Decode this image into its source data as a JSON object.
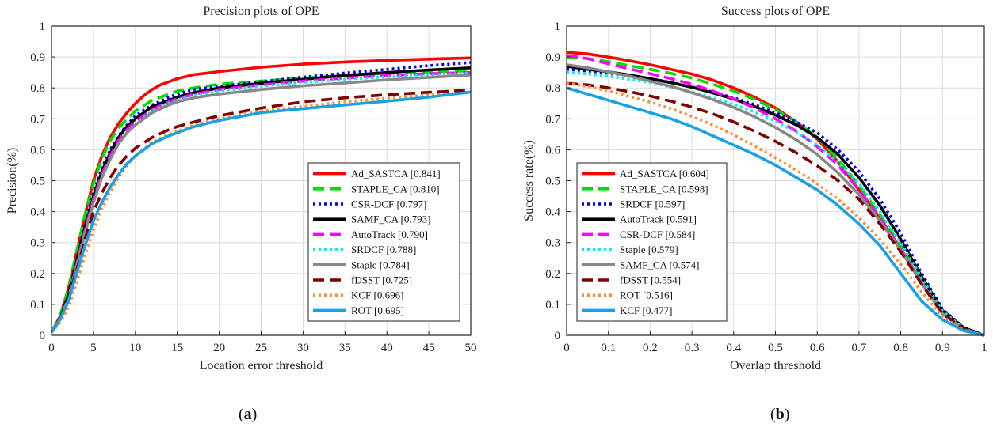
{
  "chart_data": [
    {
      "type": "line",
      "title": "Precision plots of OPE",
      "xlabel": "Location error threshold",
      "ylabel": "Precision(%)",
      "xlim": [
        0,
        50
      ],
      "ylim": [
        0,
        1
      ],
      "xticks": [
        "0",
        "5",
        "10",
        "15",
        "20",
        "25",
        "30",
        "35",
        "40",
        "45",
        "50"
      ],
      "yticks": [
        "0",
        "0.1",
        "0.2",
        "0.3",
        "0.4",
        "0.5",
        "0.6",
        "0.7",
        "0.8",
        "0.9",
        "1"
      ],
      "grid": true,
      "legend_position": "bottom-right",
      "panel_label": "a",
      "series": [
        {
          "name": "Ad_SASTCA [0.841]",
          "color": "#ff0000",
          "dash": "solid",
          "x": [
            0,
            1,
            2,
            3,
            4,
            5,
            6,
            7,
            8,
            9,
            10,
            11,
            12,
            13,
            14,
            15,
            17,
            20,
            25,
            30,
            35,
            40,
            45,
            50
          ],
          "y": [
            0.01,
            0.06,
            0.15,
            0.27,
            0.39,
            0.5,
            0.58,
            0.64,
            0.685,
            0.72,
            0.75,
            0.775,
            0.795,
            0.81,
            0.82,
            0.83,
            0.843,
            0.853,
            0.867,
            0.877,
            0.884,
            0.889,
            0.893,
            0.897
          ]
        },
        {
          "name": "STAPLE_CA [0.810]",
          "color": "#00dd00",
          "dash": "dash",
          "x": [
            0,
            1,
            2,
            3,
            4,
            5,
            6,
            7,
            8,
            9,
            10,
            12,
            14,
            15,
            17,
            20,
            25,
            30,
            35,
            40,
            45,
            50
          ],
          "y": [
            0.01,
            0.06,
            0.15,
            0.27,
            0.39,
            0.49,
            0.57,
            0.63,
            0.67,
            0.7,
            0.725,
            0.76,
            0.78,
            0.79,
            0.8,
            0.812,
            0.822,
            0.832,
            0.84,
            0.847,
            0.852,
            0.855
          ]
        },
        {
          "name": "CSR-DCF [0.797]",
          "color": "#0000ee",
          "dash": "dot",
          "x": [
            0,
            1,
            2,
            3,
            4,
            5,
            6,
            7,
            8,
            9,
            10,
            12,
            14,
            15,
            17,
            20,
            25,
            30,
            35,
            40,
            45,
            50
          ],
          "y": [
            0.01,
            0.05,
            0.13,
            0.24,
            0.36,
            0.46,
            0.54,
            0.6,
            0.645,
            0.68,
            0.71,
            0.745,
            0.77,
            0.78,
            0.795,
            0.805,
            0.82,
            0.835,
            0.848,
            0.86,
            0.872,
            0.882
          ]
        },
        {
          "name": "SAMF_CA [0.793]",
          "color": "#000000",
          "dash": "solid",
          "x": [
            0,
            1,
            2,
            3,
            4,
            5,
            6,
            7,
            8,
            9,
            10,
            12,
            14,
            15,
            17,
            20,
            25,
            30,
            35,
            40,
            45,
            50
          ],
          "y": [
            0.01,
            0.05,
            0.13,
            0.24,
            0.35,
            0.45,
            0.53,
            0.59,
            0.64,
            0.675,
            0.7,
            0.74,
            0.76,
            0.77,
            0.785,
            0.8,
            0.815,
            0.828,
            0.84,
            0.85,
            0.858,
            0.865
          ]
        },
        {
          "name": "AutoTrack [0.790]",
          "color": "#ff00ff",
          "dash": "dash",
          "x": [
            0,
            1,
            2,
            3,
            4,
            5,
            6,
            7,
            8,
            9,
            10,
            12,
            14,
            15,
            17,
            20,
            25,
            30,
            35,
            40,
            45,
            50
          ],
          "y": [
            0.01,
            0.05,
            0.12,
            0.23,
            0.34,
            0.44,
            0.52,
            0.58,
            0.63,
            0.665,
            0.69,
            0.73,
            0.755,
            0.765,
            0.78,
            0.795,
            0.81,
            0.822,
            0.832,
            0.84,
            0.846,
            0.85
          ]
        },
        {
          "name": "SRDCF [0.788]",
          "color": "#00eeee",
          "dash": "dot",
          "x": [
            0,
            1,
            2,
            3,
            4,
            5,
            6,
            7,
            8,
            9,
            10,
            12,
            14,
            15,
            17,
            20,
            25,
            30,
            35,
            40,
            45,
            50
          ],
          "y": [
            0.01,
            0.05,
            0.12,
            0.22,
            0.33,
            0.43,
            0.51,
            0.57,
            0.62,
            0.655,
            0.685,
            0.725,
            0.75,
            0.762,
            0.775,
            0.79,
            0.805,
            0.818,
            0.828,
            0.836,
            0.842,
            0.848
          ]
        },
        {
          "name": "Staple [0.784]",
          "color": "#888888",
          "dash": "solid",
          "x": [
            0,
            1,
            2,
            3,
            4,
            5,
            6,
            7,
            8,
            9,
            10,
            12,
            14,
            15,
            17,
            20,
            25,
            30,
            35,
            40,
            45,
            50
          ],
          "y": [
            0.01,
            0.05,
            0.12,
            0.22,
            0.33,
            0.43,
            0.51,
            0.57,
            0.62,
            0.655,
            0.68,
            0.72,
            0.745,
            0.755,
            0.768,
            0.78,
            0.795,
            0.807,
            0.816,
            0.826,
            0.834,
            0.842
          ]
        },
        {
          "name": "fDSST [0.725]",
          "color": "#800000",
          "dash": "dash",
          "x": [
            0,
            1,
            2,
            3,
            4,
            5,
            6,
            7,
            8,
            9,
            10,
            12,
            14,
            15,
            17,
            20,
            25,
            30,
            35,
            40,
            45,
            50
          ],
          "y": [
            0.01,
            0.05,
            0.12,
            0.21,
            0.31,
            0.4,
            0.46,
            0.51,
            0.55,
            0.58,
            0.605,
            0.64,
            0.665,
            0.675,
            0.69,
            0.71,
            0.735,
            0.755,
            0.768,
            0.778,
            0.786,
            0.793
          ]
        },
        {
          "name": "KCF [0.696]",
          "color": "#ff8c33",
          "dash": "dot",
          "x": [
            0,
            1,
            2,
            3,
            4,
            5,
            6,
            7,
            8,
            9,
            10,
            12,
            14,
            15,
            17,
            20,
            25,
            30,
            35,
            40,
            45,
            50
          ],
          "y": [
            0.01,
            0.04,
            0.09,
            0.17,
            0.26,
            0.34,
            0.41,
            0.465,
            0.51,
            0.55,
            0.58,
            0.625,
            0.65,
            0.66,
            0.68,
            0.7,
            0.725,
            0.74,
            0.755,
            0.767,
            0.777,
            0.785
          ]
        },
        {
          "name": "ROT [0.695]",
          "color": "#1aa0e6",
          "dash": "solid",
          "x": [
            0,
            1,
            2,
            3,
            4,
            5,
            6,
            7,
            8,
            9,
            10,
            12,
            14,
            15,
            17,
            20,
            25,
            30,
            35,
            40,
            45,
            50
          ],
          "y": [
            0.01,
            0.05,
            0.11,
            0.2,
            0.29,
            0.37,
            0.43,
            0.48,
            0.52,
            0.555,
            0.58,
            0.62,
            0.645,
            0.655,
            0.675,
            0.695,
            0.72,
            0.733,
            0.745,
            0.757,
            0.77,
            0.787
          ]
        }
      ]
    },
    {
      "type": "line",
      "title": "Success plots of OPE",
      "xlabel": "Overlap threshold",
      "ylabel": "Success rate(%)",
      "xlim": [
        0,
        1
      ],
      "ylim": [
        0,
        1
      ],
      "xticks": [
        "0",
        "0.1",
        "0.2",
        "0.3",
        "0.4",
        "0.5",
        "0.6",
        "0.7",
        "0.8",
        "0.9",
        "1"
      ],
      "yticks": [
        "0",
        "0.1",
        "0.2",
        "0.3",
        "0.4",
        "0.5",
        "0.6",
        "0.7",
        "0.8",
        "0.9",
        "1"
      ],
      "grid": true,
      "legend_position": "bottom-left",
      "panel_label": "b",
      "series": [
        {
          "name": "Ad_SASTCA [0.604]",
          "color": "#ff0000",
          "dash": "solid",
          "x": [
            0,
            0.05,
            0.1,
            0.15,
            0.2,
            0.25,
            0.3,
            0.35,
            0.4,
            0.45,
            0.5,
            0.55,
            0.6,
            0.65,
            0.7,
            0.75,
            0.8,
            0.85,
            0.9,
            0.95,
            1.0
          ],
          "y": [
            0.915,
            0.91,
            0.9,
            0.888,
            0.875,
            0.86,
            0.845,
            0.825,
            0.8,
            0.77,
            0.735,
            0.69,
            0.635,
            0.56,
            0.47,
            0.38,
            0.28,
            0.17,
            0.07,
            0.02,
            0.0
          ]
        },
        {
          "name": "STAPLE_CA [0.598]",
          "color": "#00dd00",
          "dash": "dash",
          "x": [
            0,
            0.05,
            0.1,
            0.15,
            0.2,
            0.25,
            0.3,
            0.35,
            0.4,
            0.45,
            0.5,
            0.55,
            0.6,
            0.65,
            0.7,
            0.75,
            0.8,
            0.85,
            0.9,
            0.95,
            1.0
          ],
          "y": [
            0.9,
            0.895,
            0.885,
            0.872,
            0.86,
            0.847,
            0.832,
            0.812,
            0.79,
            0.763,
            0.73,
            0.69,
            0.64,
            0.57,
            0.485,
            0.39,
            0.29,
            0.18,
            0.075,
            0.02,
            0.0
          ]
        },
        {
          "name": "SRDCF [0.597]",
          "color": "#0000ee",
          "dash": "dot",
          "x": [
            0,
            0.05,
            0.1,
            0.15,
            0.2,
            0.25,
            0.3,
            0.35,
            0.4,
            0.45,
            0.5,
            0.55,
            0.6,
            0.65,
            0.7,
            0.75,
            0.8,
            0.85,
            0.9,
            0.95,
            1.0
          ],
          "y": [
            0.86,
            0.855,
            0.848,
            0.84,
            0.83,
            0.818,
            0.803,
            0.787,
            0.768,
            0.746,
            0.72,
            0.69,
            0.655,
            0.6,
            0.53,
            0.44,
            0.33,
            0.2,
            0.085,
            0.025,
            0.0
          ]
        },
        {
          "name": "AutoTrack [0.591]",
          "color": "#000000",
          "dash": "solid",
          "x": [
            0,
            0.05,
            0.1,
            0.15,
            0.2,
            0.25,
            0.3,
            0.35,
            0.4,
            0.45,
            0.5,
            0.55,
            0.6,
            0.65,
            0.7,
            0.75,
            0.8,
            0.85,
            0.9,
            0.95,
            1.0
          ],
          "y": [
            0.87,
            0.86,
            0.852,
            0.842,
            0.83,
            0.817,
            0.802,
            0.784,
            0.764,
            0.74,
            0.712,
            0.68,
            0.64,
            0.585,
            0.51,
            0.42,
            0.31,
            0.19,
            0.08,
            0.025,
            0.0
          ]
        },
        {
          "name": "CSR-DCF [0.584]",
          "color": "#ff00ff",
          "dash": "dash",
          "x": [
            0,
            0.05,
            0.1,
            0.15,
            0.2,
            0.25,
            0.3,
            0.35,
            0.4,
            0.45,
            0.5,
            0.55,
            0.6,
            0.65,
            0.7,
            0.75,
            0.8,
            0.85,
            0.9,
            0.95,
            1.0
          ],
          "y": [
            0.905,
            0.895,
            0.878,
            0.862,
            0.846,
            0.83,
            0.812,
            0.79,
            0.765,
            0.735,
            0.7,
            0.66,
            0.61,
            0.55,
            0.47,
            0.38,
            0.28,
            0.17,
            0.07,
            0.02,
            0.0
          ]
        },
        {
          "name": "Staple [0.579]",
          "color": "#00eeee",
          "dash": "dot",
          "x": [
            0,
            0.05,
            0.1,
            0.15,
            0.2,
            0.25,
            0.3,
            0.35,
            0.4,
            0.45,
            0.5,
            0.55,
            0.6,
            0.65,
            0.7,
            0.75,
            0.8,
            0.85,
            0.9,
            0.95,
            1.0
          ],
          "y": [
            0.85,
            0.845,
            0.838,
            0.828,
            0.817,
            0.803,
            0.787,
            0.768,
            0.747,
            0.722,
            0.692,
            0.657,
            0.615,
            0.56,
            0.49,
            0.4,
            0.3,
            0.185,
            0.078,
            0.022,
            0.0
          ]
        },
        {
          "name": "SAMF_CA [0.574]",
          "color": "#888888",
          "dash": "solid",
          "x": [
            0,
            0.05,
            0.1,
            0.15,
            0.2,
            0.25,
            0.3,
            0.35,
            0.4,
            0.45,
            0.5,
            0.55,
            0.6,
            0.65,
            0.7,
            0.75,
            0.8,
            0.85,
            0.9,
            0.95,
            1.0
          ],
          "y": [
            0.875,
            0.865,
            0.852,
            0.838,
            0.822,
            0.805,
            0.785,
            0.762,
            0.737,
            0.707,
            0.672,
            0.632,
            0.585,
            0.525,
            0.455,
            0.37,
            0.275,
            0.168,
            0.07,
            0.02,
            0.0
          ]
        },
        {
          "name": "fDSST [0.554]",
          "color": "#800000",
          "dash": "dash",
          "x": [
            0,
            0.05,
            0.1,
            0.15,
            0.2,
            0.25,
            0.3,
            0.35,
            0.4,
            0.45,
            0.5,
            0.55,
            0.6,
            0.65,
            0.7,
            0.75,
            0.8,
            0.85,
            0.9,
            0.95,
            1.0
          ],
          "y": [
            0.815,
            0.81,
            0.8,
            0.788,
            0.774,
            0.757,
            0.738,
            0.716,
            0.69,
            0.66,
            0.627,
            0.59,
            0.548,
            0.5,
            0.44,
            0.36,
            0.27,
            0.165,
            0.07,
            0.02,
            0.0
          ]
        },
        {
          "name": "ROT [0.516]",
          "color": "#ff8c33",
          "dash": "dot",
          "x": [
            0,
            0.05,
            0.1,
            0.15,
            0.2,
            0.25,
            0.3,
            0.35,
            0.4,
            0.45,
            0.5,
            0.55,
            0.6,
            0.65,
            0.7,
            0.75,
            0.8,
            0.85,
            0.9,
            0.95,
            1.0
          ],
          "y": [
            0.815,
            0.805,
            0.79,
            0.773,
            0.754,
            0.733,
            0.708,
            0.68,
            0.648,
            0.612,
            0.574,
            0.534,
            0.49,
            0.44,
            0.38,
            0.31,
            0.23,
            0.14,
            0.06,
            0.017,
            0.0
          ]
        },
        {
          "name": "KCF [0.477]",
          "color": "#1aa0e6",
          "dash": "solid",
          "x": [
            0,
            0.05,
            0.1,
            0.15,
            0.2,
            0.25,
            0.3,
            0.35,
            0.4,
            0.45,
            0.5,
            0.55,
            0.6,
            0.65,
            0.7,
            0.75,
            0.8,
            0.85,
            0.9,
            0.95,
            1.0
          ],
          "y": [
            0.8,
            0.78,
            0.76,
            0.74,
            0.72,
            0.7,
            0.675,
            0.645,
            0.615,
            0.585,
            0.55,
            0.51,
            0.47,
            0.42,
            0.36,
            0.29,
            0.2,
            0.11,
            0.05,
            0.015,
            0.0
          ]
        }
      ]
    }
  ]
}
